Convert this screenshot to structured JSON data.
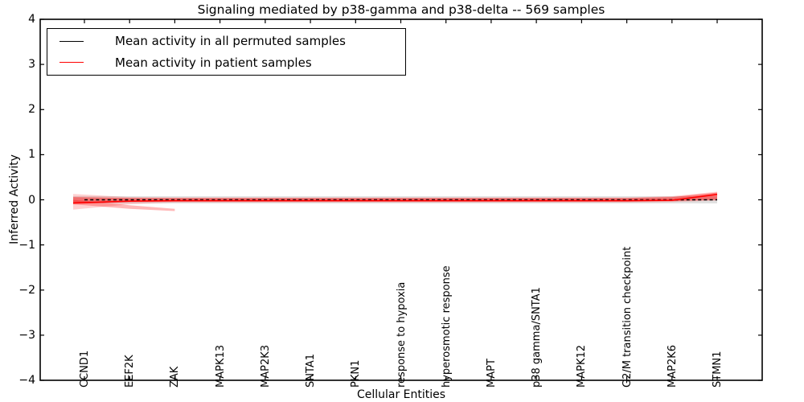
{
  "title": "Signaling mediated by p38-gamma and p38-delta -- 569 samples",
  "axes": {
    "ylabel": "Inferred Activity",
    "xlabel": "Cellular Entities",
    "yticks": [
      "4",
      "3",
      "2",
      "1",
      "0",
      "−1",
      "−2",
      "−3",
      "−4"
    ]
  },
  "legend": {
    "entries": [
      {
        "label": "Mean activity in all permuted samples",
        "color": "#000000"
      },
      {
        "label": "Mean activity in patient samples",
        "color": "#ff0000"
      }
    ]
  },
  "chart_data": {
    "type": "line",
    "title": "Signaling mediated by p38-gamma and p38-delta -- 569 samples",
    "xlabel": "Cellular Entities",
    "ylabel": "Inferred Activity",
    "ylim": [
      -4,
      4
    ],
    "grid": false,
    "legend_position": "upper left",
    "categories": [
      "CCND1",
      "EEF2K",
      "ZAK",
      "MAPK13",
      "MAP2K3",
      "SNTA1",
      "PKN1",
      "response to hypoxia",
      "hyperosmotic response",
      "MAPT",
      "p38 gamma/SNTA1",
      "MAPK12",
      "G2/M transition checkpoint",
      "MAP2K6",
      "STMN1"
    ],
    "series": [
      {
        "name": "Mean activity in all permuted samples",
        "color": "#000000",
        "style": "dashed",
        "values": [
          0,
          0,
          0,
          0,
          0,
          0,
          0,
          0,
          0,
          0,
          0,
          0,
          0,
          0,
          0
        ]
      },
      {
        "name": "Mean activity in patient samples",
        "color": "#ff0000",
        "style": "solid",
        "values": [
          -0.07,
          -0.03,
          -0.02,
          -0.02,
          -0.02,
          -0.02,
          -0.02,
          -0.02,
          -0.02,
          -0.02,
          -0.02,
          -0.02,
          -0.02,
          -0.01,
          0.12
        ]
      }
    ],
    "bands": [
      {
        "name": "permuted-std-band",
        "color": "#bdbdbd",
        "opacity": 0.45,
        "upper": [
          0.08,
          0.08,
          0.08,
          0.08,
          0.08,
          0.08,
          0.08,
          0.08,
          0.08,
          0.08,
          0.08,
          0.08,
          0.08,
          0.08,
          0.08
        ],
        "lower": [
          -0.08,
          -0.08,
          -0.08,
          -0.08,
          -0.08,
          -0.08,
          -0.08,
          -0.08,
          -0.08,
          -0.08,
          -0.08,
          -0.08,
          -0.08,
          -0.08,
          -0.08
        ]
      },
      {
        "name": "patient-outer-band",
        "color": "#ff0000",
        "opacity": 0.18,
        "upper": [
          0.13,
          0.06,
          0.05,
          0.05,
          0.05,
          0.05,
          0.05,
          0.05,
          0.05,
          0.05,
          0.05,
          0.05,
          0.05,
          0.08,
          0.18
        ],
        "lower": [
          -0.22,
          -0.1,
          -0.06,
          -0.06,
          -0.06,
          -0.06,
          -0.06,
          -0.06,
          -0.06,
          -0.06,
          -0.06,
          -0.06,
          -0.06,
          -0.05,
          -0.02
        ]
      },
      {
        "name": "patient-inner-band",
        "color": "#ff0000",
        "opacity": 0.4,
        "upper": [
          0.06,
          0.04,
          0.04,
          0.04,
          0.04,
          0.04,
          0.04,
          0.04,
          0.04,
          0.04,
          0.04,
          0.04,
          0.04,
          0.06,
          0.16
        ],
        "lower": [
          -0.09,
          -0.05,
          -0.04,
          -0.04,
          -0.04,
          -0.04,
          -0.04,
          -0.04,
          -0.04,
          -0.04,
          -0.04,
          -0.04,
          -0.04,
          -0.03,
          0.0
        ]
      }
    ],
    "fan_overlay": {
      "comment": "steep left-edge uncertainty fan at CCND1",
      "color": "#ff0000",
      "opacity": 0.28,
      "x_index": [
        0,
        1,
        2
      ],
      "upper": [
        0.0,
        -0.12,
        -0.2
      ],
      "lower": [
        -0.1,
        -0.2,
        -0.25
      ]
    }
  }
}
